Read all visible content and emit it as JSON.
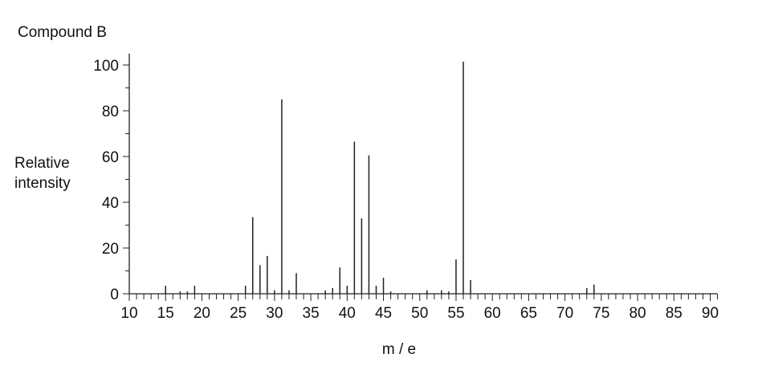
{
  "chart_data": {
    "type": "bar",
    "title": "Compound B",
    "xlabel": "m / e",
    "ylabel_lines": [
      "Relative",
      "intensity"
    ],
    "xlim": [
      10,
      91
    ],
    "ylim": [
      0,
      105
    ],
    "x_ticks": [
      10,
      15,
      20,
      25,
      30,
      35,
      40,
      45,
      50,
      55,
      60,
      65,
      70,
      75,
      80,
      85,
      90
    ],
    "y_ticks": [
      0,
      20,
      40,
      60,
      80,
      100
    ],
    "grid": false,
    "bar_color": "#222222",
    "points": [
      {
        "x": 15,
        "y": 3.5
      },
      {
        "x": 17,
        "y": 1
      },
      {
        "x": 18,
        "y": 1
      },
      {
        "x": 19,
        "y": 3.5
      },
      {
        "x": 26,
        "y": 3.5
      },
      {
        "x": 27,
        "y": 33.5
      },
      {
        "x": 28,
        "y": 12.5
      },
      {
        "x": 29,
        "y": 16.5
      },
      {
        "x": 30,
        "y": 1.5
      },
      {
        "x": 31,
        "y": 85
      },
      {
        "x": 32,
        "y": 1.5
      },
      {
        "x": 33,
        "y": 9
      },
      {
        "x": 37,
        "y": 1.5
      },
      {
        "x": 38,
        "y": 2.5
      },
      {
        "x": 39,
        "y": 11.5
      },
      {
        "x": 40,
        "y": 3.5
      },
      {
        "x": 41,
        "y": 66.5
      },
      {
        "x": 42,
        "y": 33
      },
      {
        "x": 43,
        "y": 60.5
      },
      {
        "x": 44,
        "y": 3.5
      },
      {
        "x": 45,
        "y": 7
      },
      {
        "x": 46,
        "y": 1
      },
      {
        "x": 51,
        "y": 1.5
      },
      {
        "x": 53,
        "y": 1.5
      },
      {
        "x": 54,
        "y": 1
      },
      {
        "x": 55,
        "y": 15
      },
      {
        "x": 56,
        "y": 101.5
      },
      {
        "x": 57,
        "y": 6
      },
      {
        "x": 73,
        "y": 2.5
      },
      {
        "x": 74,
        "y": 4
      }
    ]
  }
}
